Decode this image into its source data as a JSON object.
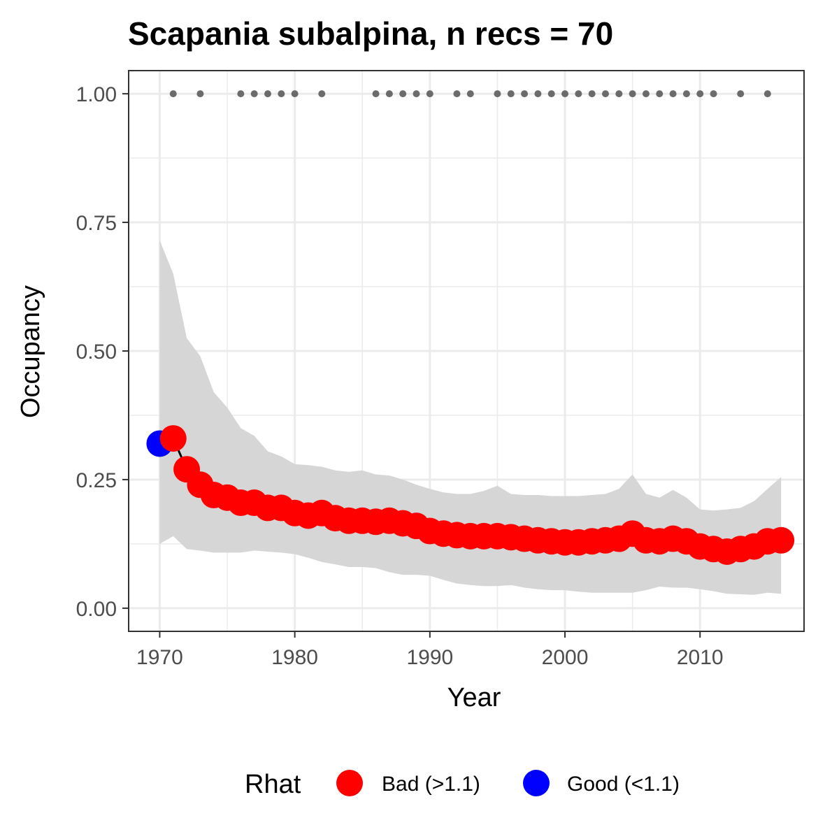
{
  "chart_data": {
    "type": "line",
    "title": "Scapania subalpina, n recs = 70",
    "xlabel": "Year",
    "ylabel": "Occupancy",
    "xlim": [
      1967.7,
      2017.7
    ],
    "ylim": [
      -0.045,
      1.045
    ],
    "x_ticks": [
      1970,
      1980,
      1990,
      2000,
      2010
    ],
    "x_tick_labels": [
      "1970",
      "1980",
      "1990",
      "2000",
      "2010"
    ],
    "y_ticks": [
      0,
      0.25,
      0.5,
      0.75,
      1.0
    ],
    "y_tick_labels": [
      "0.00",
      "0.25",
      "0.50",
      "0.75",
      "1.00"
    ],
    "grid": true,
    "years": [
      1970,
      1971,
      1972,
      1973,
      1974,
      1975,
      1976,
      1977,
      1978,
      1979,
      1980,
      1981,
      1982,
      1983,
      1984,
      1985,
      1986,
      1987,
      1988,
      1989,
      1990,
      1991,
      1992,
      1993,
      1994,
      1995,
      1996,
      1997,
      1998,
      1999,
      2000,
      2001,
      2002,
      2003,
      2004,
      2005,
      2006,
      2007,
      2008,
      2009,
      2010,
      2011,
      2012,
      2013,
      2014,
      2015,
      2016
    ],
    "occupancy": [
      0.32,
      0.33,
      0.27,
      0.24,
      0.22,
      0.215,
      0.205,
      0.205,
      0.195,
      0.195,
      0.185,
      0.18,
      0.185,
      0.175,
      0.17,
      0.17,
      0.168,
      0.17,
      0.165,
      0.16,
      0.15,
      0.145,
      0.142,
      0.14,
      0.14,
      0.14,
      0.138,
      0.135,
      0.132,
      0.13,
      0.128,
      0.128,
      0.13,
      0.132,
      0.135,
      0.145,
      0.132,
      0.13,
      0.135,
      0.13,
      0.12,
      0.115,
      0.11,
      0.115,
      0.12,
      0.13,
      0.132
    ],
    "rhat": [
      "Good (<1.1)",
      "Bad (>1.1)",
      "Bad (>1.1)",
      "Bad (>1.1)",
      "Bad (>1.1)",
      "Bad (>1.1)",
      "Bad (>1.1)",
      "Bad (>1.1)",
      "Bad (>1.1)",
      "Bad (>1.1)",
      "Bad (>1.1)",
      "Bad (>1.1)",
      "Bad (>1.1)",
      "Bad (>1.1)",
      "Bad (>1.1)",
      "Bad (>1.1)",
      "Bad (>1.1)",
      "Bad (>1.1)",
      "Bad (>1.1)",
      "Bad (>1.1)",
      "Bad (>1.1)",
      "Bad (>1.1)",
      "Bad (>1.1)",
      "Bad (>1.1)",
      "Bad (>1.1)",
      "Bad (>1.1)",
      "Bad (>1.1)",
      "Bad (>1.1)",
      "Bad (>1.1)",
      "Bad (>1.1)",
      "Bad (>1.1)",
      "Bad (>1.1)",
      "Bad (>1.1)",
      "Bad (>1.1)",
      "Bad (>1.1)",
      "Bad (>1.1)",
      "Bad (>1.1)",
      "Bad (>1.1)",
      "Bad (>1.1)",
      "Bad (>1.1)",
      "Bad (>1.1)",
      "Bad (>1.1)",
      "Bad (>1.1)",
      "Bad (>1.1)",
      "Bad (>1.1)",
      "Bad (>1.1)",
      "Bad (>1.1)"
    ],
    "ci_lower": [
      0.125,
      0.14,
      0.115,
      0.112,
      0.108,
      0.108,
      0.108,
      0.112,
      0.11,
      0.108,
      0.105,
      0.098,
      0.09,
      0.085,
      0.08,
      0.08,
      0.078,
      0.07,
      0.065,
      0.065,
      0.063,
      0.055,
      0.048,
      0.045,
      0.043,
      0.043,
      0.045,
      0.04,
      0.037,
      0.035,
      0.035,
      0.032,
      0.03,
      0.03,
      0.03,
      0.03,
      0.035,
      0.042,
      0.04,
      0.04,
      0.037,
      0.033,
      0.028,
      0.027,
      0.026,
      0.03,
      0.028
    ],
    "ci_upper": [
      0.715,
      0.65,
      0.525,
      0.49,
      0.42,
      0.39,
      0.35,
      0.335,
      0.305,
      0.295,
      0.28,
      0.278,
      0.275,
      0.268,
      0.265,
      0.268,
      0.26,
      0.258,
      0.25,
      0.24,
      0.232,
      0.225,
      0.222,
      0.222,
      0.228,
      0.238,
      0.222,
      0.22,
      0.22,
      0.218,
      0.218,
      0.218,
      0.22,
      0.222,
      0.232,
      0.26,
      0.222,
      0.215,
      0.23,
      0.215,
      0.192,
      0.19,
      0.192,
      0.195,
      0.208,
      0.232,
      0.255
    ],
    "record_years": [
      1971,
      1973,
      1976,
      1977,
      1978,
      1979,
      1980,
      1982,
      1986,
      1987,
      1988,
      1989,
      1990,
      1992,
      1993,
      1995,
      1996,
      1997,
      1998,
      1999,
      2000,
      2001,
      2002,
      2003,
      2004,
      2005,
      2006,
      2007,
      2008,
      2009,
      2010,
      2011,
      2013,
      2015
    ],
    "record_value": 1.0,
    "legend": {
      "title": "Rhat",
      "position": "bottom",
      "entries": [
        {
          "label": "Bad (>1.1)",
          "color": "#ff0000"
        },
        {
          "label": "Good (<1.1)",
          "color": "#0000ff"
        }
      ]
    },
    "colors": {
      "ribbon": "#d6d6d6",
      "line": "#000000",
      "record_points": "#6b6b6b",
      "grid": "#ebebeb",
      "panel_border": "#333333"
    }
  }
}
